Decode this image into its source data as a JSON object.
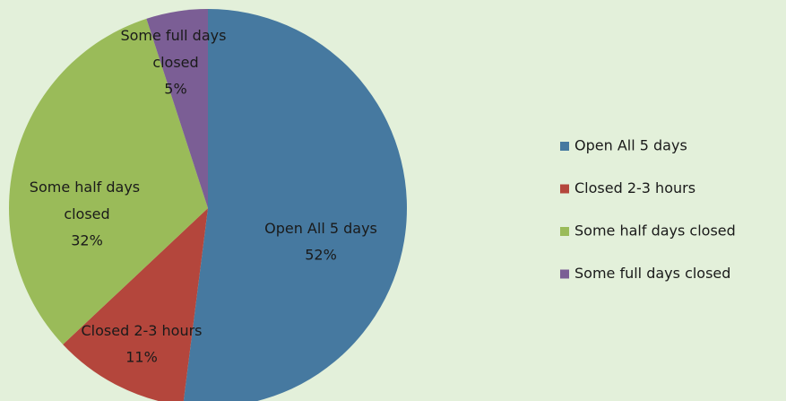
{
  "chart_data": {
    "type": "pie",
    "categories": [
      "Open All 5 days",
      "Closed 2-3 hours",
      "Some half days closed",
      "Some full days closed"
    ],
    "values": [
      52,
      11,
      32,
      5
    ],
    "value_labels": [
      "52%",
      "11%",
      "32%",
      "5%"
    ],
    "colors": [
      "#4679a0",
      "#b4463c",
      "#9abb59",
      "#7b5e95"
    ],
    "legend": "right"
  }
}
